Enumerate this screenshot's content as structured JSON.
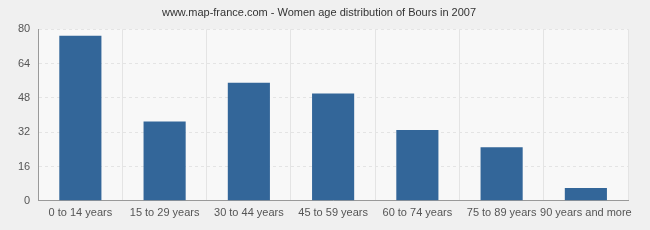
{
  "chart_data": {
    "type": "bar",
    "title": "www.map-france.com - Women age distribution of Bours in 2007",
    "categories": [
      "0 to 14 years",
      "15 to 29 years",
      "30 to 44 years",
      "45 to 59 years",
      "60 to 74 years",
      "75 to 89 years",
      "90 years and more"
    ],
    "values": [
      77,
      37,
      55,
      50,
      33,
      25,
      6
    ],
    "color": "#336699",
    "ylim": [
      0,
      80
    ],
    "yticks": [
      0,
      16,
      32,
      48,
      64,
      80
    ],
    "grid": true
  }
}
